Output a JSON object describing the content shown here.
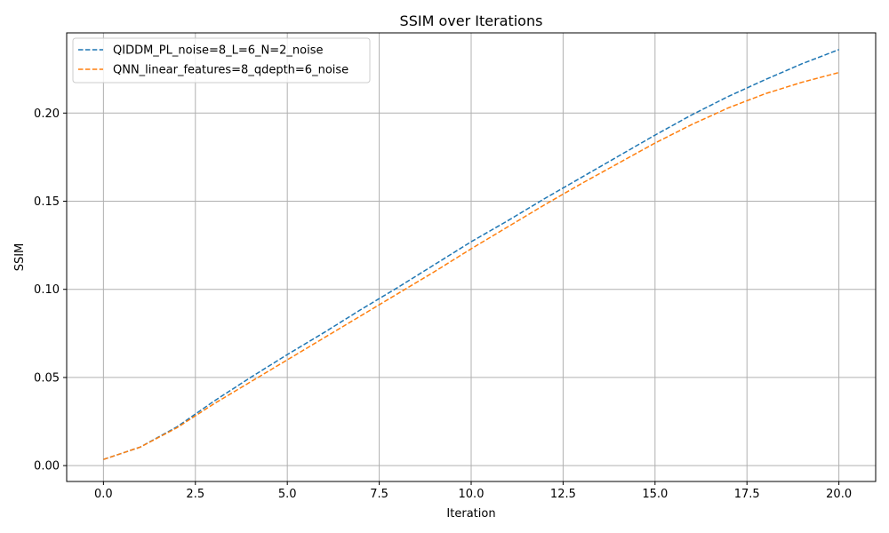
{
  "chart_data": {
    "type": "line",
    "title": "SSIM over Iterations",
    "xlabel": "Iteration",
    "ylabel": "SSIM",
    "xlim": [
      -1.0,
      21.0
    ],
    "ylim": [
      -0.009,
      0.2455
    ],
    "xticks": [
      0.0,
      2.5,
      5.0,
      7.5,
      10.0,
      12.5,
      15.0,
      17.5,
      20.0
    ],
    "xtick_labels": [
      "0.0",
      "2.5",
      "5.0",
      "7.5",
      "10.0",
      "12.5",
      "15.0",
      "17.5",
      "20.0"
    ],
    "yticks": [
      0.0,
      0.05,
      0.1,
      0.15,
      0.2
    ],
    "ytick_labels": [
      "0.00",
      "0.05",
      "0.10",
      "0.15",
      "0.20"
    ],
    "grid": true,
    "legend_position": "top-left",
    "x": [
      0,
      1,
      2,
      3,
      4,
      5,
      6,
      7,
      8,
      9,
      10,
      11,
      12,
      13,
      14,
      15,
      16,
      17,
      18,
      19,
      20
    ],
    "series": [
      {
        "name": "QIDDM_PL_noise=8_L=6_N=2_noise",
        "color": "#1f77b4",
        "linestyle": "dashed",
        "values": [
          0.0035,
          0.0105,
          0.022,
          0.0365,
          0.05,
          0.063,
          0.0755,
          0.0885,
          0.101,
          0.114,
          0.127,
          0.139,
          0.1515,
          0.1635,
          0.1755,
          0.1875,
          0.199,
          0.2095,
          0.219,
          0.228,
          0.236
        ]
      },
      {
        "name": "QNN_linear_features=8_qdepth=6_noise",
        "color": "#ff7f0e",
        "linestyle": "dashed",
        "values": [
          0.0035,
          0.0105,
          0.0215,
          0.035,
          0.0475,
          0.06,
          0.0725,
          0.085,
          0.0975,
          0.11,
          0.123,
          0.1355,
          0.148,
          0.16,
          0.1715,
          0.183,
          0.1935,
          0.203,
          0.211,
          0.2175,
          0.223
        ]
      }
    ]
  }
}
